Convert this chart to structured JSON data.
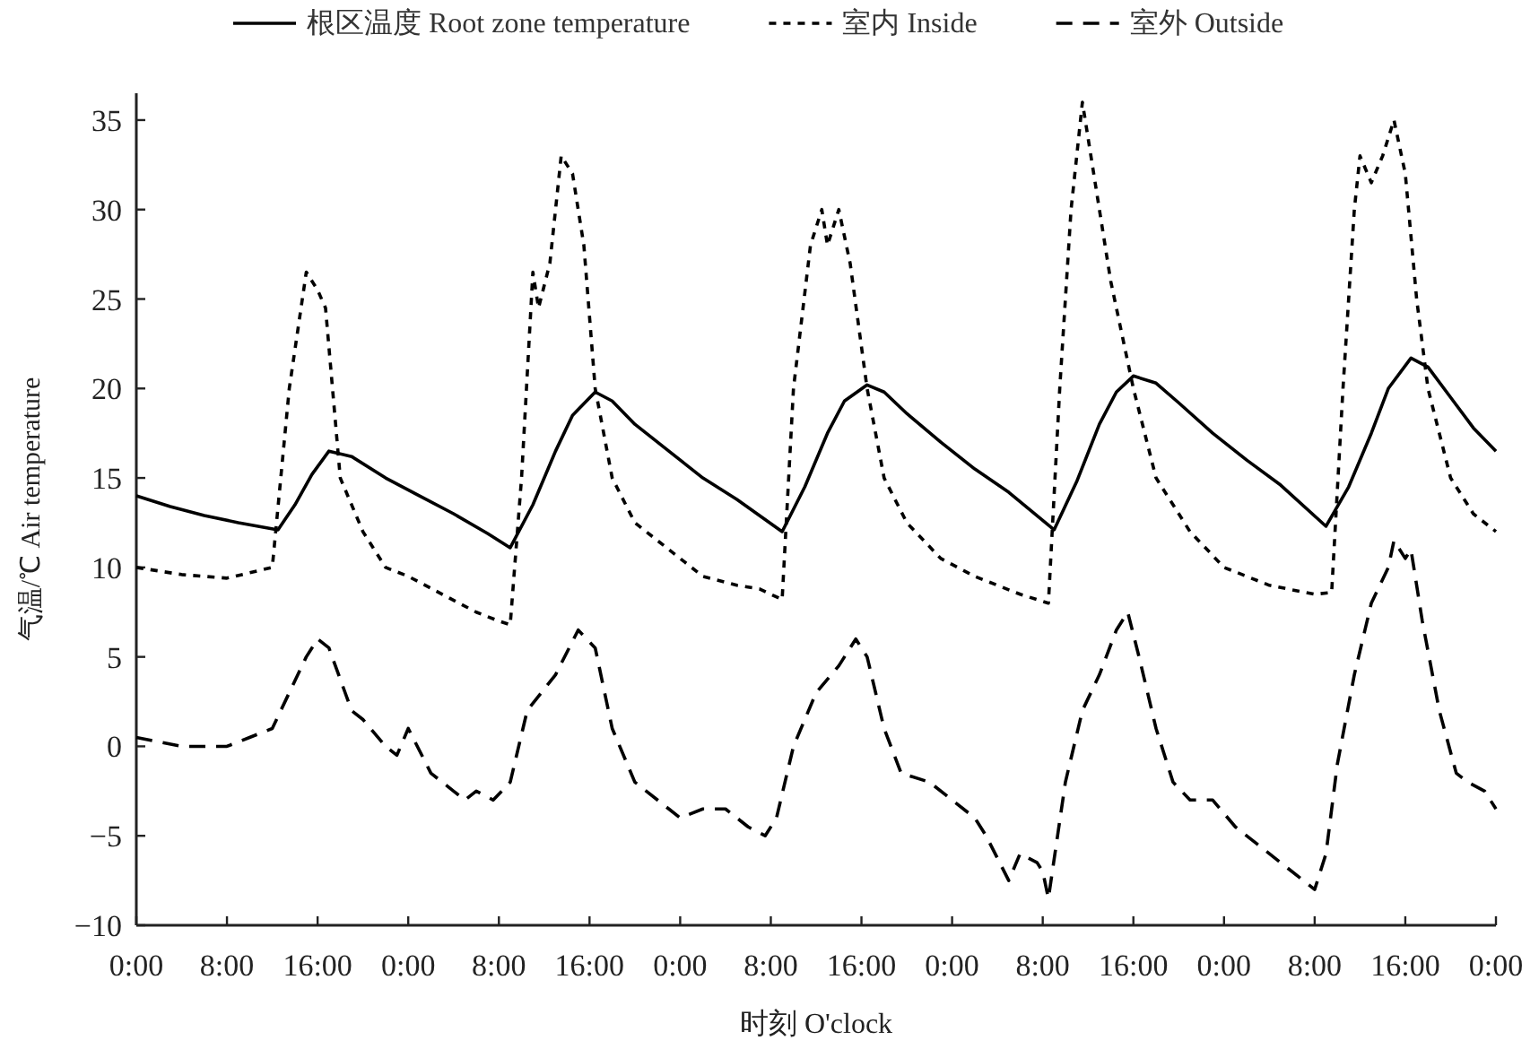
{
  "chart_data": {
    "type": "line",
    "xlabel": "时刻 O'clock",
    "ylabel": "气温/℃ Air temperature",
    "xlim": [
      "--01-01T00:00",
      "--01-06T00:00"
    ],
    "ylim": [
      -10,
      36.5
    ],
    "xticks": [
      {
        "value": "--01-01T00:00",
        "label": "0:00"
      },
      {
        "value": "--01-01T08:00",
        "label": "8:00"
      },
      {
        "value": "--01-01T16:00",
        "label": "16:00"
      },
      {
        "value": "--01-02T00:00",
        "label": "0:00"
      },
      {
        "value": "--01-02T08:00",
        "label": "8:00"
      },
      {
        "value": "--01-02T16:00",
        "label": "16:00"
      },
      {
        "value": "--01-03T00:00",
        "label": "0:00"
      },
      {
        "value": "--01-03T08:00",
        "label": "8:00"
      },
      {
        "value": "--01-03T16:00",
        "label": "16:00"
      },
      {
        "value": "--01-04T00:00",
        "label": "0:00"
      },
      {
        "value": "--01-04T08:00",
        "label": "8:00"
      },
      {
        "value": "--01-04T16:00",
        "label": "16:00"
      },
      {
        "value": "--01-05T00:00",
        "label": "0:00"
      },
      {
        "value": "--01-05T08:00",
        "label": "8:00"
      },
      {
        "value": "--01-05T16:00",
        "label": "16:00"
      },
      {
        "value": "--01-06T00:00",
        "label": "0:00"
      }
    ],
    "yticks": [
      {
        "value": -10,
        "label": "−10"
      },
      {
        "value": -5,
        "label": "−5"
      },
      0,
      5,
      10,
      15,
      20,
      25,
      30,
      35
    ],
    "grid": false,
    "legend": "top",
    "series": [
      {
        "name": "根区温度 Root zone temperature",
        "color": "#000000",
        "line_style": "solid",
        "x": [
          "--01-01T00:00",
          "--01-01T03:00",
          "--01-01T06:00",
          "--01-01T09:00",
          "--01-01T12:30",
          "--01-01T14:00",
          "--01-01T15:30",
          "--01-01T17:00",
          "--01-01T19:00",
          "--01-01T22:00",
          "--01-02T01:00",
          "--01-02T04:00",
          "--01-02T07:00",
          "--01-02T09:00",
          "--01-02T11:00",
          "--01-02T13:00",
          "--01-02T14:30",
          "--01-02T16:30",
          "--01-02T18:00",
          "--01-02T20:00",
          "--01-02T23:00",
          "--01-03T02:00",
          "--01-03T05:00",
          "--01-03T09:00",
          "--01-03T11:00",
          "--01-03T13:00",
          "--01-03T14:30",
          "--01-03T16:30",
          "--01-03T18:00",
          "--01-03T20:00",
          "--01-03T23:00",
          "--01-04T02:00",
          "--01-04T05:00",
          "--01-04T09:00",
          "--01-04T11:00",
          "--01-04T13:00",
          "--01-04T14:30",
          "--01-04T16:00",
          "--01-04T18:00",
          "--01-04T20:00",
          "--01-04T23:00",
          "--01-05T02:00",
          "--01-05T05:00",
          "--01-05T09:00",
          "--01-05T11:00",
          "--01-05T13:00",
          "--01-05T14:30",
          "--01-05T16:30",
          "--01-05T18:00",
          "--01-05T20:00",
          "--01-05T22:00",
          "--01-06T00:00"
        ],
        "values": [
          14,
          13.4,
          12.9,
          12.5,
          12.1,
          13.5,
          15.2,
          16.5,
          16.2,
          15,
          14,
          13,
          11.9,
          11.1,
          13.5,
          16.5,
          18.5,
          19.8,
          19.3,
          18,
          16.5,
          15,
          13.8,
          12,
          14.5,
          17.5,
          19.3,
          20.2,
          19.8,
          18.6,
          17,
          15.5,
          14.2,
          12.1,
          14.8,
          18,
          19.8,
          20.7,
          20.3,
          19.2,
          17.5,
          16,
          14.6,
          12.3,
          14.5,
          17.5,
          20,
          21.7,
          21.2,
          19.5,
          17.8,
          16.5
        ]
      },
      {
        "name": "室内 Inside",
        "color": "#000000",
        "line_style": "dotted",
        "x": [
          "--01-01T00:00",
          "--01-01T04:00",
          "--01-01T08:00",
          "--01-01T12:00",
          "--01-01T13:30",
          "--01-01T15:00",
          "--01-01T16:00",
          "--01-01T16:42",
          "--01-01T18:00",
          "--01-01T20:00",
          "--01-01T22:00",
          "--01-02T00:00",
          "--01-02T03:00",
          "--01-02T06:00",
          "--01-02T08:00",
          "--01-02T09:00",
          "--01-02T10:00",
          "--01-02T11:00",
          "--01-02T11:30",
          "--01-02T12:30",
          "--01-02T13:30",
          "--01-02T14:30",
          "--01-02T15:30",
          "--01-02T16:30",
          "--01-02T18:00",
          "--01-02T20:00",
          "--01-02T23:00",
          "--01-03T02:00",
          "--01-03T05:00",
          "--01-03T07:00",
          "--01-03T09:00",
          "--01-03T10:00",
          "--01-03T11:30",
          "--01-03T12:30",
          "--01-03T13:00",
          "--01-03T14:00",
          "--01-03T15:00",
          "--01-03T16:30",
          "--01-03T18:00",
          "--01-03T20:00",
          "--01-03T23:00",
          "--01-04T02:00",
          "--01-04T06:00",
          "--01-04T08:30",
          "--01-04T09:30",
          "--01-04T10:30",
          "--01-04T11:30",
          "--01-04T12:30",
          "--01-04T13:30",
          "--01-04T14:00",
          "--01-04T16:00",
          "--01-04T18:00",
          "--01-04T21:00",
          "--01-05T00:00",
          "--01-05T04:00",
          "--01-05T08:00",
          "--01-05T09:30",
          "--01-05T10:30",
          "--01-05T11:30",
          "--01-05T12:00",
          "--01-05T13:00",
          "--01-05T14:00",
          "--01-05T15:00",
          "--01-05T16:00",
          "--01-05T17:00",
          "--01-05T18:00",
          "--01-05T20:00",
          "--01-05T22:00",
          "--01-06T00:00"
        ],
        "values": [
          10,
          9.6,
          9.4,
          10,
          20,
          26.5,
          25.5,
          24.5,
          15,
          12,
          10,
          9.5,
          8.5,
          7.5,
          7,
          6.8,
          15,
          26.5,
          24.5,
          27,
          33,
          32,
          28,
          20,
          15,
          12.5,
          11,
          9.5,
          9,
          8.8,
          8.2,
          20,
          28,
          30,
          28,
          30,
          27,
          20,
          15,
          12.5,
          10.5,
          9.5,
          8.5,
          8,
          20,
          30,
          36,
          32,
          28,
          26,
          20,
          15,
          12,
          10,
          9,
          8.5,
          8.6,
          20,
          30,
          33,
          31.5,
          33,
          35,
          32,
          25,
          20,
          15,
          13,
          12
        ]
      },
      {
        "name": "室外 Outside",
        "color": "#000000",
        "line_style": "dashed",
        "x": [
          "--01-01T00:00",
          "--01-01T04:00",
          "--01-01T08:00",
          "--01-01T10:00",
          "--01-01T12:00",
          "--01-01T13:30",
          "--01-01T15:00",
          "--01-01T16:00",
          "--01-01T17:00",
          "--01-01T19:00",
          "--01-01T20:00",
          "--01-01T22:00",
          "--01-01T23:00",
          "--01-02T00:00",
          "--01-02T02:00",
          "--01-02T04:00",
          "--01-02T05:00",
          "--01-02T06:00",
          "--01-02T07:30",
          "--01-02T09:00",
          "--01-02T10:30",
          "--01-02T13:00",
          "--01-02T15:00",
          "--01-02T16:30",
          "--01-02T18:00",
          "--01-02T20:00",
          "--01-02T23:00",
          "--01-03T00:00",
          "--01-03T02:00",
          "--01-03T04:00",
          "--01-03T06:00",
          "--01-03T07:30",
          "--01-03T08:30",
          "--01-03T10:00",
          "--01-03T12:00",
          "--01-03T14:00",
          "--01-03T15:30",
          "--01-03T16:30",
          "--01-03T18:00",
          "--01-03T19:30",
          "--01-03T22:00",
          "--01-04T00:00",
          "--01-04T02:00",
          "--01-04T03:00",
          "--01-04T05:00",
          "--01-04T06:00",
          "--01-04T07:30",
          "--01-04T08:00",
          "--01-04T08:30",
          "--01-04T10:00",
          "--01-04T11:30",
          "--01-04T13:00",
          "--01-04T14:30",
          "--01-04T15:30",
          "--01-04T16:30",
          "--01-04T18:00",
          "--01-04T19:30",
          "--01-04T21:00",
          "--01-04T23:00",
          "--01-05T01:00",
          "--01-05T03:00",
          "--01-05T05:00",
          "--01-05T07:00",
          "--01-05T08:00",
          "--01-05T09:00",
          "--01-05T10:00",
          "--01-05T11:30",
          "--01-05T13:00",
          "--01-05T14:30",
          "--01-05T15:00",
          "--01-05T16:00",
          "--01-05T16:30",
          "--01-05T17:30",
          "--01-05T19:00",
          "--01-05T20:30",
          "--01-05T21:30",
          "--01-05T23:00",
          "--01-06T00:00"
        ],
        "values": [
          0.5,
          0,
          0,
          0.5,
          1,
          3,
          5,
          6,
          5.5,
          2,
          1.5,
          0,
          -0.5,
          1,
          -1.5,
          -2.5,
          -3,
          -2.5,
          -3,
          -2,
          2,
          4,
          6.5,
          5.5,
          1,
          -2,
          -3.5,
          -4,
          -3.5,
          -3.5,
          -4.5,
          -5,
          -4,
          0,
          3,
          4.5,
          6,
          5,
          1,
          -1.5,
          -2,
          -3,
          -4,
          -5,
          -7.5,
          -6,
          -6.5,
          -7,
          -8.5,
          -2,
          2,
          4,
          6.5,
          7.5,
          5,
          1,
          -2,
          -3,
          -3,
          -4.5,
          -5.5,
          -6.5,
          -7.5,
          -8,
          -6,
          -1,
          4,
          8,
          10,
          11.5,
          10.5,
          11,
          7,
          2,
          -1.5,
          -2,
          -2.5,
          -3.5
        ]
      }
    ]
  }
}
